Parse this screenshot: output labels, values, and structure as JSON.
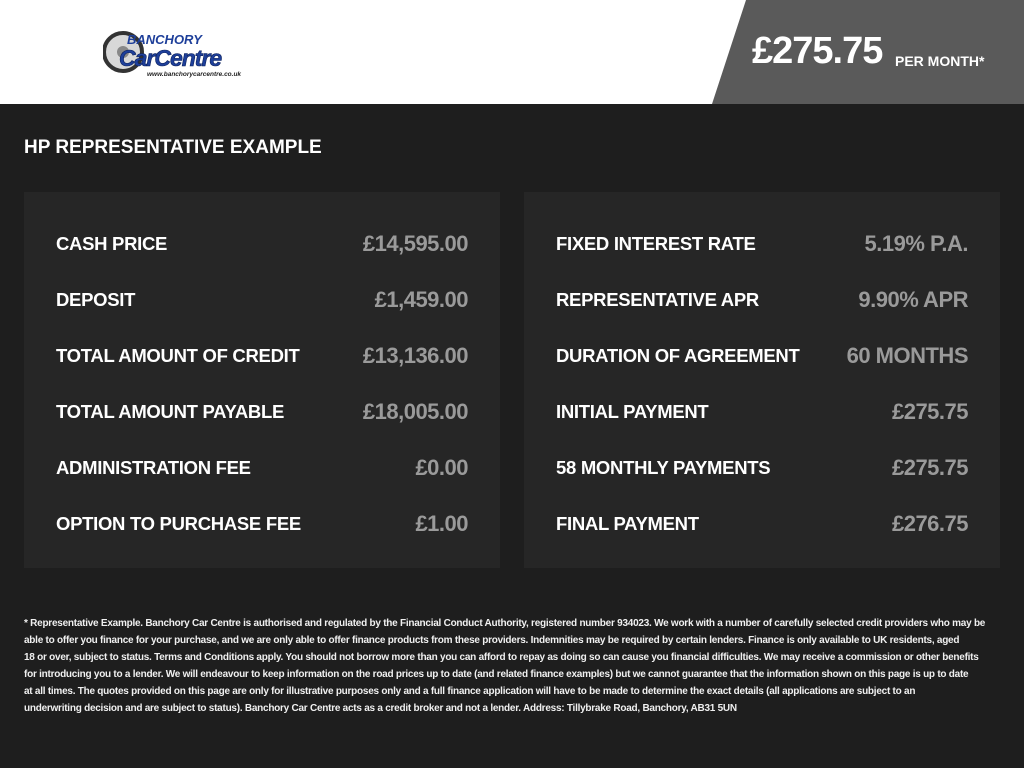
{
  "header": {
    "logo_text": "Banchory CarCentre www.banchorycarcentre.co.uk",
    "price": "£275.75",
    "per_month": "PER MONTH*"
  },
  "title": "HP REPRESENTATIVE EXAMPLE",
  "left": [
    {
      "label": "CASH PRICE",
      "value": "£14,595.00"
    },
    {
      "label": "DEPOSIT",
      "value": "£1,459.00"
    },
    {
      "label": "TOTAL AMOUNT OF CREDIT",
      "value": "£13,136.00"
    },
    {
      "label": "TOTAL AMOUNT PAYABLE",
      "value": "£18,005.00"
    },
    {
      "label": "ADMINISTRATION FEE",
      "value": "£0.00"
    },
    {
      "label": "OPTION TO PURCHASE FEE",
      "value": "£1.00"
    }
  ],
  "right": [
    {
      "label": "FIXED INTEREST RATE",
      "value": "5.19% P.A."
    },
    {
      "label": "REPRESENTATIVE APR",
      "value": "9.90% APR"
    },
    {
      "label": "DURATION OF AGREEMENT",
      "value": "60 MONTHS"
    },
    {
      "label": "INITIAL PAYMENT",
      "value": "£275.75"
    },
    {
      "label": "58 MONTHLY PAYMENTS",
      "value": "£275.75"
    },
    {
      "label": "FINAL PAYMENT",
      "value": "£276.75"
    }
  ],
  "disclaimer": [
    "* Representative Example. Banchory Car Centre is authorised and regulated by the Financial Conduct Authority, registered number 934023. We work with a number of carefully selected credit providers who may be",
    "able to offer you finance for your purchase, and we are only able to offer finance products from these providers. Indemnities may be required by certain lenders. Finance is only available to UK residents, aged",
    "18 or over, subject to status. Terms and Conditions apply. You should not borrow more than you can afford to repay as doing so can cause you financial difficulties. We may receive a commission or other benefits",
    "for introducing you to a lender. We will endeavour to keep information on the road prices up to date (and related finance examples) but we cannot guarantee that the information shown on this page is up to date",
    "at all times. The quotes provided on this page are only for illustrative purposes only and a full finance application will have to be made to determine the exact details (all applications are subject to an",
    "underwriting decision and are subject to status). Banchory Car Centre acts as a credit broker and not a lender. Address: Tillybrake Road, Banchory, AB31 5UN"
  ]
}
